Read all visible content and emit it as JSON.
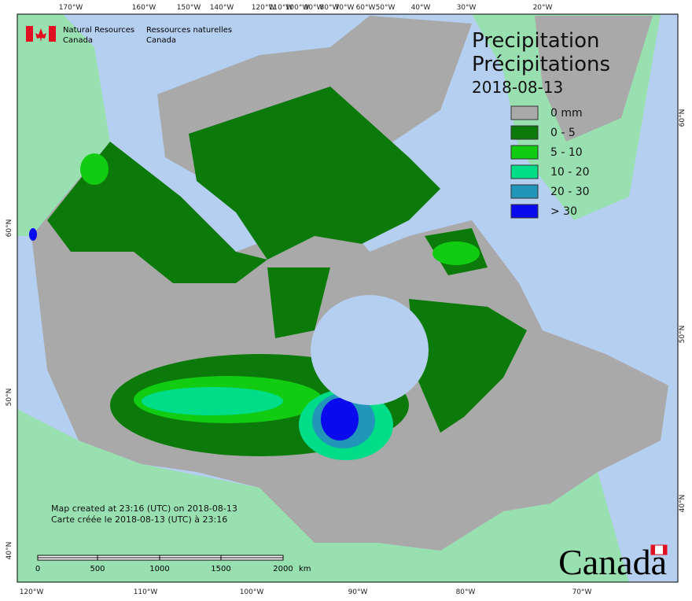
{
  "header": {
    "agency_en": "Natural Resources",
    "country_en": "Canada",
    "agency_fr": "Ressources naturelles",
    "country_fr": "Canada"
  },
  "title": {
    "en": "Precipitation",
    "fr": "Précipitations",
    "date": "2018-08-13"
  },
  "legend": [
    {
      "label": "0 mm",
      "color": "#a9a9a9"
    },
    {
      "label": "0 - 5",
      "color": "#0b7a0b"
    },
    {
      "label": "5 - 10",
      "color": "#12cc12"
    },
    {
      "label": "10 - 20",
      "color": "#00dd88"
    },
    {
      "label": "20 - 30",
      "color": "#2196b8"
    },
    {
      "label": "> 30",
      "color": "#0a0aee"
    }
  ],
  "top_longitudes": [
    "170°W",
    "160°W",
    "150°W",
    "140°W",
    "120°W",
    "110°W",
    "100°W",
    "90°W",
    "80°W",
    "70°W",
    "60°W",
    "50°W",
    "40°W",
    "30°W",
    "20°W"
  ],
  "bottom_longitudes": [
    "120°W",
    "110°W",
    "100°W",
    "90°W",
    "80°W",
    "70°W"
  ],
  "left_latitudes": [
    "60°N",
    "50°N",
    "40°N"
  ],
  "right_latitudes": [
    "60°N",
    "50°N",
    "40°N"
  ],
  "footnote": {
    "en": "Map created at 23:16 (UTC) on 2018-08-13",
    "fr": "Carte créée le 2018-08-13 (UTC) à 23:16"
  },
  "scale": {
    "labels": [
      "0",
      "500",
      "1000",
      "1500",
      "2000"
    ],
    "unit": "km"
  },
  "wordmark": "Canada"
}
